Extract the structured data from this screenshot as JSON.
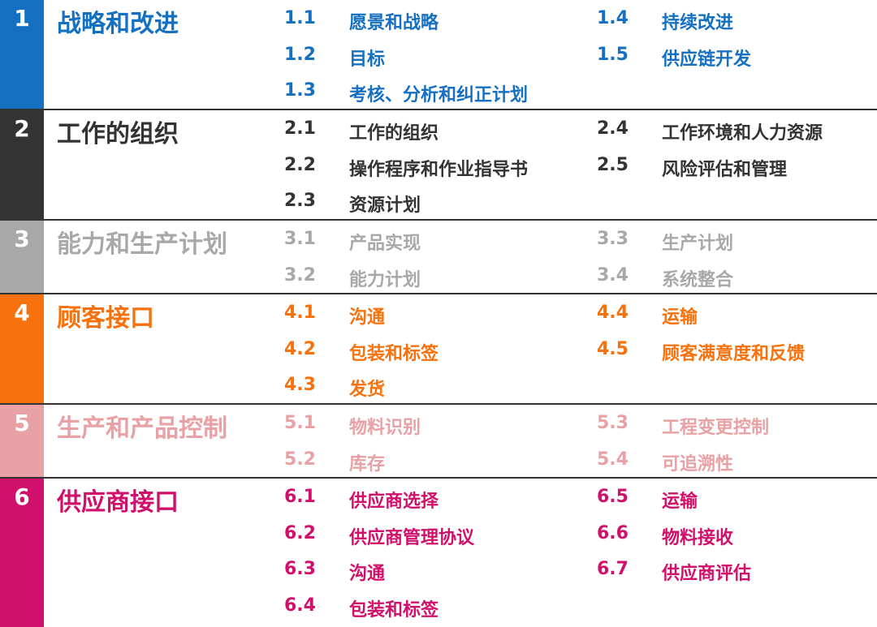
{
  "sections": [
    {
      "number": "1",
      "title": "战略和改进",
      "color": "#1670c2",
      "left": [
        {
          "number": "1.1",
          "label": "愿景和战略"
        },
        {
          "number": "1.2",
          "label": "目标"
        },
        {
          "number": "1.3",
          "label": "考核、分析和纠正计划"
        }
      ],
      "right": [
        {
          "number": "1.4",
          "label": "持续改进"
        },
        {
          "number": "1.5",
          "label": "供应链开发"
        }
      ]
    },
    {
      "number": "2",
      "title": "工作的组织",
      "color": "#333333",
      "left": [
        {
          "number": "2.1",
          "label": "工作的组织"
        },
        {
          "number": "2.2",
          "label": "操作程序和作业指导书"
        },
        {
          "number": "2.3",
          "label": "资源计划"
        }
      ],
      "right": [
        {
          "number": "2.4",
          "label": "工作环境和人力资源"
        },
        {
          "number": "2.5",
          "label": "风险评估和管理"
        }
      ]
    },
    {
      "number": "3",
      "title": "能力和生产计划",
      "color": "#a8a8a8",
      "left": [
        {
          "number": "3.1",
          "label": "产品实现"
        },
        {
          "number": "3.2",
          "label": "能力计划"
        }
      ],
      "right": [
        {
          "number": "3.3",
          "label": "生产计划"
        },
        {
          "number": "3.4",
          "label": "系统整合"
        }
      ]
    },
    {
      "number": "4",
      "title": "顾客接口",
      "color": "#f7720c",
      "left": [
        {
          "number": "4.1",
          "label": "沟通"
        },
        {
          "number": "4.2",
          "label": "包装和标签"
        },
        {
          "number": "4.3",
          "label": "发货"
        }
      ],
      "right": [
        {
          "number": "4.4",
          "label": "运输"
        },
        {
          "number": "4.5",
          "label": "顾客满意度和反馈"
        }
      ]
    },
    {
      "number": "5",
      "title": "生产和产品控制",
      "color": "#e8a1a5",
      "left": [
        {
          "number": "5.1",
          "label": "物料识别"
        },
        {
          "number": "5.2",
          "label": "库存"
        }
      ],
      "right": [
        {
          "number": "5.3",
          "label": "工程变更控制"
        },
        {
          "number": "5.4",
          "label": "可追溯性"
        }
      ]
    },
    {
      "number": "6",
      "title": "供应商接口",
      "color": "#d1106b",
      "left": [
        {
          "number": "6.1",
          "label": "供应商选择"
        },
        {
          "number": "6.2",
          "label": "供应商管理协议"
        },
        {
          "number": "6.3",
          "label": "沟通"
        },
        {
          "number": "6.4",
          "label": "包装和标签"
        }
      ],
      "right": [
        {
          "number": "6.5",
          "label": "运输"
        },
        {
          "number": "6.6",
          "label": "物料接收"
        },
        {
          "number": "6.7",
          "label": "供应商评估"
        }
      ]
    }
  ]
}
